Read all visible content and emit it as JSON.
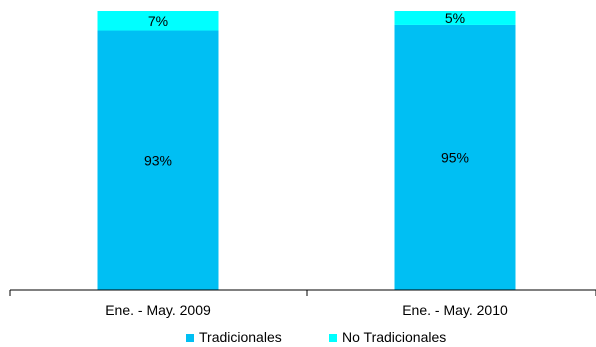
{
  "chart_data": {
    "type": "bar",
    "stacked": true,
    "percent": true,
    "categories": [
      "Ene. - May. 2009",
      "Ene. - May. 2010"
    ],
    "series": [
      {
        "name": "Tradicionales",
        "values": [
          93,
          95
        ],
        "labels": [
          "93%",
          "95%"
        ],
        "color": "#00bff3"
      },
      {
        "name": "No Tradicionales",
        "values": [
          7,
          5
        ],
        "labels": [
          "7%",
          "5%"
        ],
        "color": "#00ffff"
      }
    ],
    "ylim": [
      0,
      100
    ],
    "grid": false,
    "legend": "bottom-center"
  }
}
